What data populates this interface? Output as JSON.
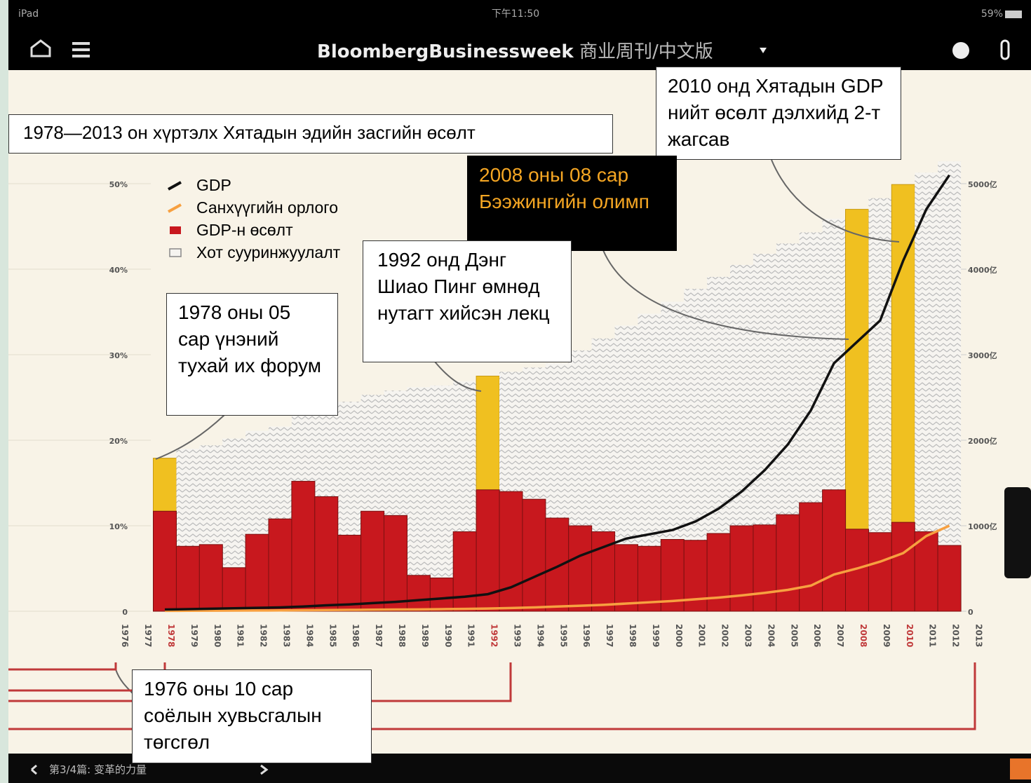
{
  "status_bar": {
    "device": "iPad",
    "time": "下午11:50",
    "battery": "59%"
  },
  "header": {
    "brand": "BloombergBusinessweek",
    "edition": "商业周刊/中文版"
  },
  "footer": {
    "article": "第3/4篇: 变革的力量"
  },
  "chart_data": {
    "type": "bar",
    "title": "1978—2013 он хүртэлх Хятадын эдийн засгийн өсөлт",
    "categories": [
      "1976",
      "1977",
      "1978",
      "1979",
      "1980",
      "1981",
      "1982",
      "1983",
      "1984",
      "1985",
      "1986",
      "1987",
      "1988",
      "1989",
      "1990",
      "1991",
      "1992",
      "1993",
      "1994",
      "1995",
      "1996",
      "1997",
      "1998",
      "1999",
      "2000",
      "2001",
      "2002",
      "2003",
      "2004",
      "2005",
      "2006",
      "2007",
      "2008",
      "2009",
      "2010",
      "2011",
      "2012",
      "2013"
    ],
    "highlight": [
      "1978",
      "1992",
      "2008",
      "2010"
    ],
    "highlight_color": "#f0c020",
    "ylim": [
      0,
      50
    ],
    "yticks": [
      0,
      {
        "value": 10,
        "label": "10%"
      },
      {
        "value": 20,
        "label": "20%"
      },
      {
        "value": 30,
        "label": "30%"
      },
      {
        "value": 40,
        "label": "40%"
      },
      {
        "value": 50,
        "label": "50%"
      }
    ],
    "y2lim": [
      0,
      5000
    ],
    "y2ticks": [
      0,
      {
        "value": 1000,
        "label": "1000亿"
      },
      {
        "value": 2000,
        "label": "2000亿"
      },
      {
        "value": 3000,
        "label": "3000亿"
      },
      {
        "value": 4000,
        "label": "4000亿"
      },
      {
        "value": 5000,
        "label": "5000亿"
      }
    ],
    "grid": true,
    "series": [
      {
        "name": "GDP",
        "type": "line",
        "axis": "y2",
        "color": "#111111",
        "values": [
          null,
          null,
          20,
          25,
          30,
          35,
          40,
          45,
          55,
          70,
          80,
          95,
          110,
          130,
          150,
          170,
          200,
          280,
          400,
          520,
          650,
          750,
          850,
          900,
          950,
          1050,
          1200,
          1400,
          1650,
          1950,
          2350,
          2900,
          3150,
          3400,
          4100,
          4700,
          5100,
          null
        ]
      },
      {
        "name": "Санхүүгийн орлого",
        "type": "line",
        "axis": "y2",
        "color": "#f7a040",
        "values": [
          null,
          null,
          5,
          6,
          7,
          8,
          9,
          10,
          12,
          14,
          16,
          18,
          20,
          22,
          25,
          28,
          32,
          38,
          45,
          55,
          65,
          75,
          90,
          105,
          120,
          140,
          160,
          185,
          215,
          250,
          300,
          430,
          500,
          580,
          680,
          880,
          1000,
          null
        ]
      },
      {
        "name": "GDP-н өсөлт",
        "type": "bar",
        "color": "#c8181e",
        "values": [
          null,
          null,
          11.7,
          7.6,
          7.8,
          5.1,
          9.0,
          10.8,
          15.2,
          13.4,
          8.9,
          11.7,
          11.2,
          4.2,
          3.9,
          9.3,
          14.2,
          14.0,
          13.1,
          10.9,
          10.0,
          9.3,
          7.8,
          7.6,
          8.4,
          8.3,
          9.1,
          10.0,
          10.1,
          11.3,
          12.7,
          14.2,
          9.6,
          9.2,
          10.4,
          9.3,
          7.7,
          null
        ]
      },
      {
        "name": "Хот суурин­жуулалт",
        "type": "bar",
        "color": "#e6e6e6",
        "values": [
          null,
          null,
          17.9,
          19.0,
          19.4,
          20.2,
          21.1,
          21.6,
          23.0,
          23.7,
          24.5,
          25.3,
          25.8,
          26.2,
          26.4,
          26.9,
          27.5,
          28.0,
          28.5,
          29.0,
          30.5,
          31.9,
          33.4,
          34.8,
          36.2,
          37.7,
          39.1,
          40.5,
          41.8,
          43.0,
          44.3,
          45.9,
          47.0,
          48.3,
          49.9,
          51.3,
          52.6,
          null
        ]
      }
    ],
    "annotations": [
      "2010 онд Хятадын GDP нийт өсөлт дэлхийд 2-т жагсав",
      "2008 оны 08 сар Бээжингийн олимп",
      "1992 онд Дэнг Шиао Пинг өмнөд нутагт хийсэн лекц",
      "1978 оны 05 сар үнэний тухай их форум",
      "1976 оны 10 сар соёлын хувьсгалын төгсгөл"
    ]
  }
}
